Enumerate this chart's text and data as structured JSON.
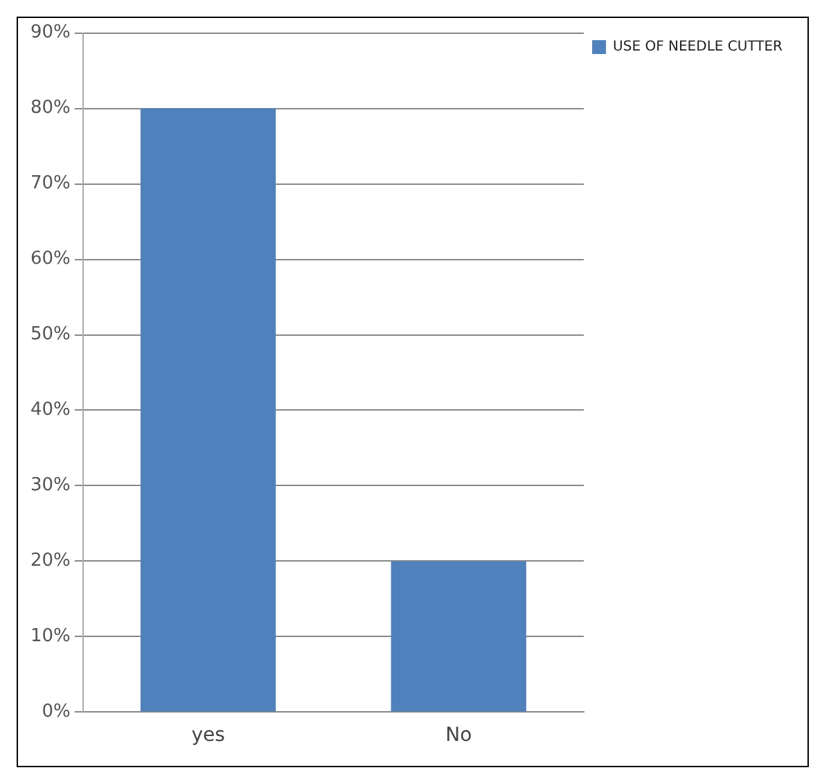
{
  "chart_data": {
    "type": "bar",
    "categories": [
      "yes",
      "No"
    ],
    "series": [
      {
        "name": "USE OF NEEDLE CUTTER",
        "color": "#4f81bd",
        "values": [
          80,
          20
        ]
      }
    ],
    "ylim": [
      0,
      90
    ],
    "yticks": [
      {
        "value": 0,
        "label": "0%"
      },
      {
        "value": 10,
        "label": "10%"
      },
      {
        "value": 20,
        "label": "20%"
      },
      {
        "value": 30,
        "label": "30%"
      },
      {
        "value": 40,
        "label": "40%"
      },
      {
        "value": 50,
        "label": "50%"
      },
      {
        "value": 60,
        "label": "60%"
      },
      {
        "value": 70,
        "label": "70%"
      },
      {
        "value": 80,
        "label": "80%"
      },
      {
        "value": 90,
        "label": "90%"
      }
    ],
    "grid": "y",
    "legend": "right"
  }
}
